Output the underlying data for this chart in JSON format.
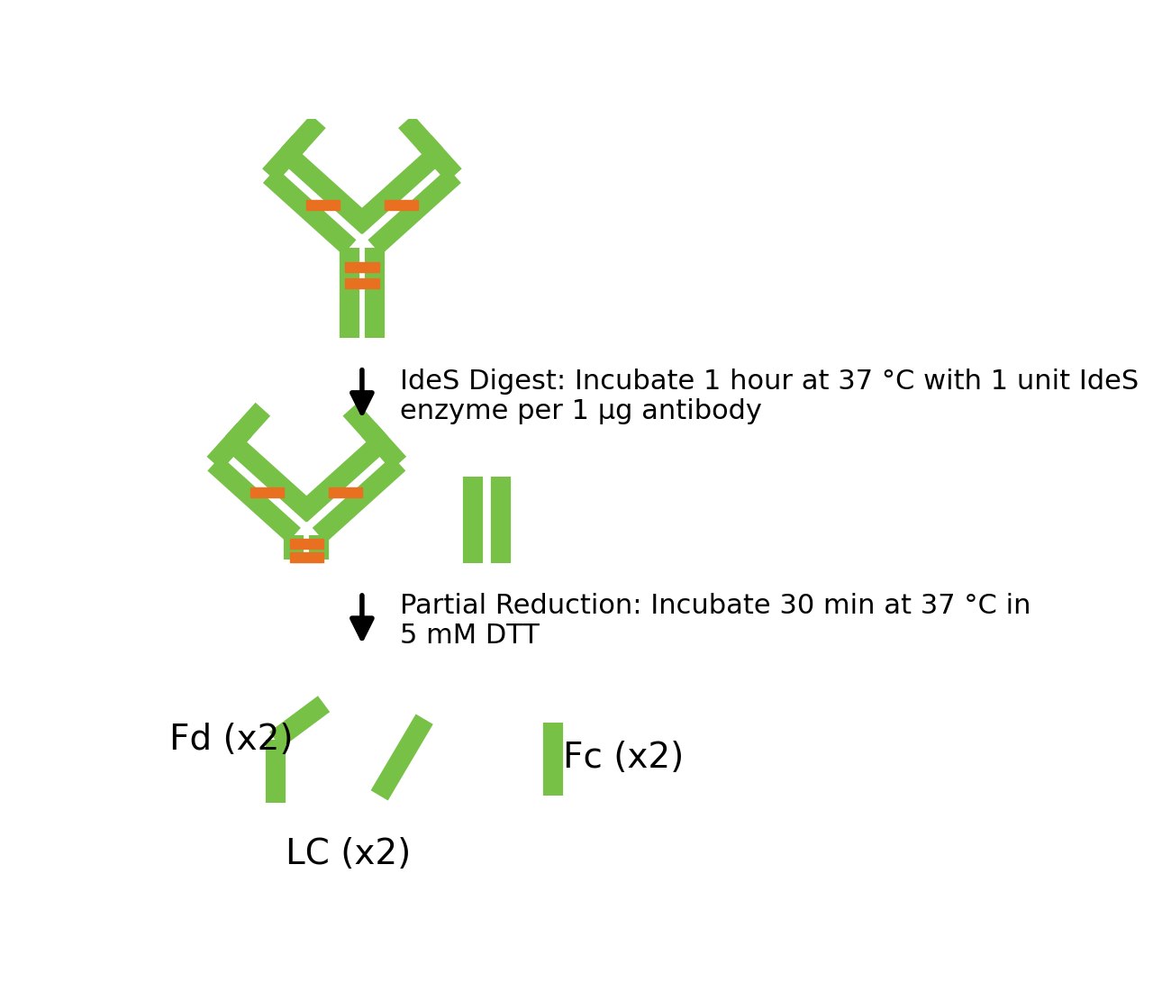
{
  "green_color": "#77C147",
  "orange_color": "#E87020",
  "background_color": "#FFFFFF",
  "step1_text": "IdeS Digest: Incubate 1 hour at 37 °C with 1 unit IdeS\nenzyme per 1 μg antibody",
  "step2_text": "Partial Reduction: Incubate 30 min at 37 °C in\n5 mM DTT",
  "fd_label": "Fd (x2)",
  "lc_label": "LC (x2)",
  "fc_label": "Fc (x2)",
  "label_fontsize": 28,
  "step_fontsize": 22,
  "lw_main": 16
}
